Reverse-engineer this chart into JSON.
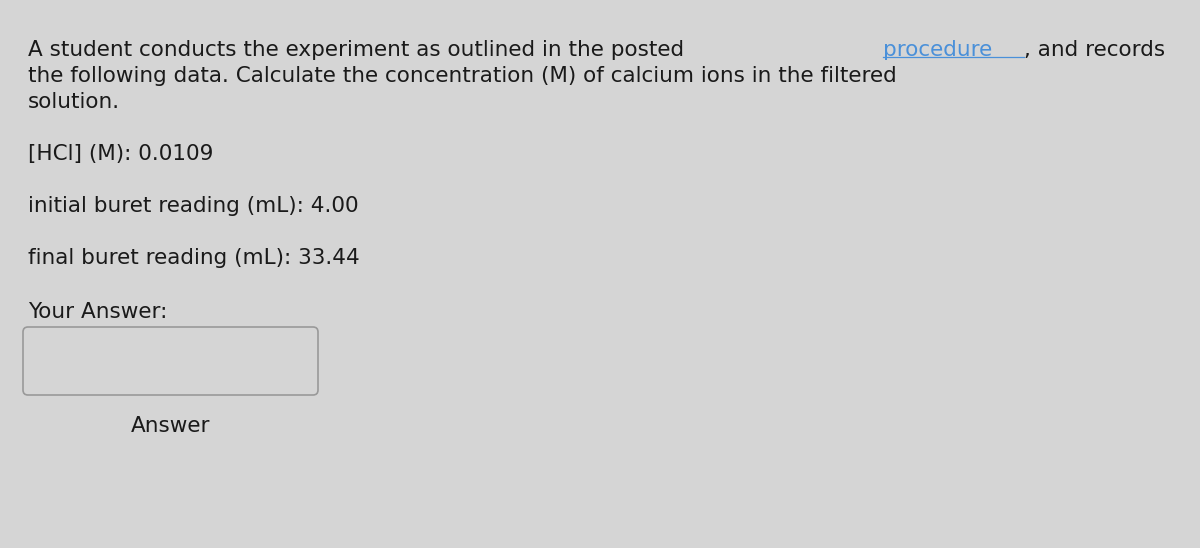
{
  "background_color": "#d5d5d5",
  "text_color": "#1a1a1a",
  "link_color": "#4a90d9",
  "text1a": "A student conducts the experiment as outlined in the posted ",
  "text1b": "procedure",
  "text1c": ", and records",
  "line2": "the following data. Calculate the concentration (M) of calcium ions in the filtered",
  "line3": "solution.",
  "data_line1": "[HCl] (M): 0.0109",
  "data_line2": "initial buret reading (mL): 4.00",
  "data_line3": "final buret reading (mL): 33.44",
  "answer_label": "Your Answer:",
  "button_label": "Answer",
  "font_size": 15.5
}
